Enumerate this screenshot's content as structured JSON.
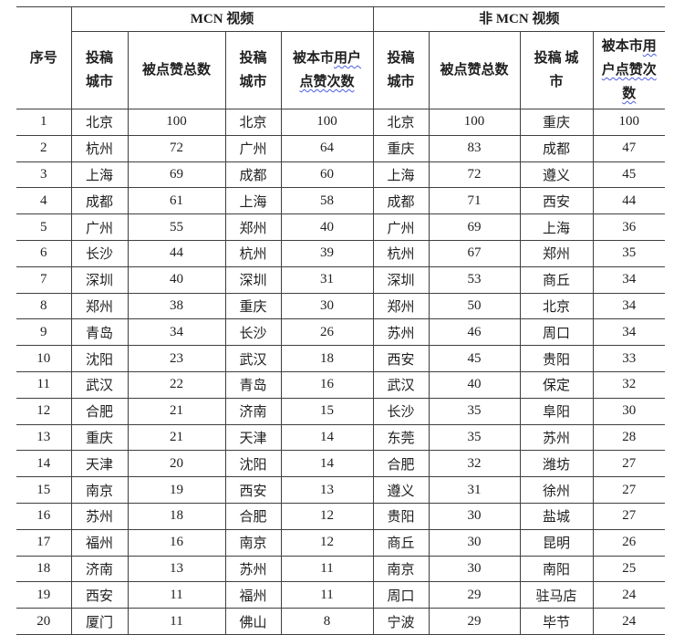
{
  "colors": {
    "border": "#3f3f3f",
    "text": "#1f1f1f",
    "spellcheck_squiggle": "#4a5ee0",
    "background": "#ffffff"
  },
  "header": {
    "seq": "序号",
    "mcn_group": "MCN 视频",
    "non_mcn_group": "非 MCN 视频",
    "mcn_city": "投稿城市",
    "mcn_total_likes": "被点赞总数",
    "mcn_local_city": "投稿城市",
    "mcn_local_plain": "被本市",
    "mcn_local_wavy": "用户点赞次数",
    "non_mcn_city": "投稿城市",
    "non_mcn_total_likes": "被点赞总数",
    "non_mcn_local_city": "投稿 城市",
    "non_mcn_local_plain": "被本市",
    "non_mcn_local_wavy": "用户点赞次数"
  },
  "rows": [
    [
      1,
      "北京",
      100,
      "北京",
      100,
      "北京",
      100,
      "重庆",
      100
    ],
    [
      2,
      "杭州",
      72,
      "广州",
      64,
      "重庆",
      83,
      "成都",
      47
    ],
    [
      3,
      "上海",
      69,
      "成都",
      60,
      "上海",
      72,
      "遵义",
      45
    ],
    [
      4,
      "成都",
      61,
      "上海",
      58,
      "成都",
      71,
      "西安",
      44
    ],
    [
      5,
      "广州",
      55,
      "郑州",
      40,
      "广州",
      69,
      "上海",
      36
    ],
    [
      6,
      "长沙",
      44,
      "杭州",
      39,
      "杭州",
      67,
      "郑州",
      35
    ],
    [
      7,
      "深圳",
      40,
      "深圳",
      31,
      "深圳",
      53,
      "商丘",
      34
    ],
    [
      8,
      "郑州",
      38,
      "重庆",
      30,
      "郑州",
      50,
      "北京",
      34
    ],
    [
      9,
      "青岛",
      34,
      "长沙",
      26,
      "苏州",
      46,
      "周口",
      34
    ],
    [
      10,
      "沈阳",
      23,
      "武汉",
      18,
      "西安",
      45,
      "贵阳",
      33
    ],
    [
      11,
      "武汉",
      22,
      "青岛",
      16,
      "武汉",
      40,
      "保定",
      32
    ],
    [
      12,
      "合肥",
      21,
      "济南",
      15,
      "长沙",
      35,
      "阜阳",
      30
    ],
    [
      13,
      "重庆",
      21,
      "天津",
      14,
      "东莞",
      35,
      "苏州",
      28
    ],
    [
      14,
      "天津",
      20,
      "沈阳",
      14,
      "合肥",
      32,
      "潍坊",
      27
    ],
    [
      15,
      "南京",
      19,
      "西安",
      13,
      "遵义",
      31,
      "徐州",
      27
    ],
    [
      16,
      "苏州",
      18,
      "合肥",
      12,
      "贵阳",
      30,
      "盐城",
      27
    ],
    [
      17,
      "福州",
      16,
      "南京",
      12,
      "商丘",
      30,
      "昆明",
      26
    ],
    [
      18,
      "济南",
      13,
      "苏州",
      11,
      "南京",
      30,
      "南阳",
      25
    ],
    [
      19,
      "西安",
      11,
      "福州",
      11,
      "周口",
      29,
      "驻马店",
      24
    ],
    [
      20,
      "厦门",
      11,
      "佛山",
      8,
      "宁波",
      29,
      "毕节",
      24
    ]
  ]
}
